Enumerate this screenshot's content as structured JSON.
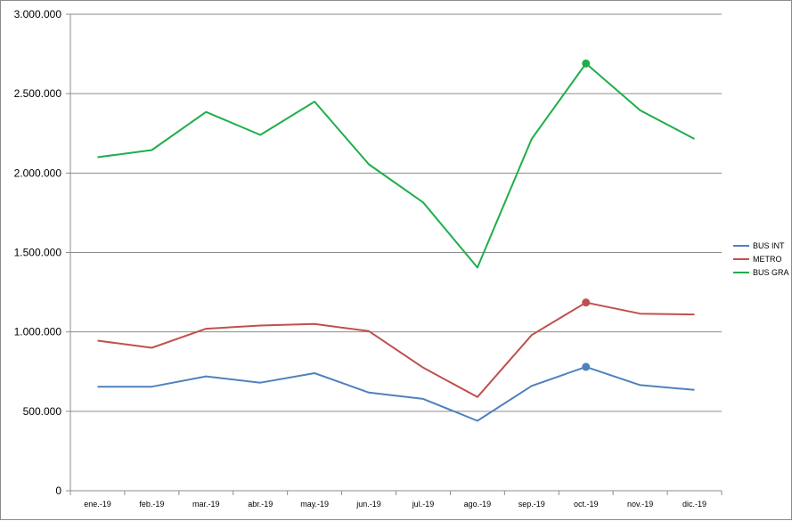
{
  "chart_data": {
    "type": "line",
    "categories": [
      "ene.-19",
      "feb.-19",
      "mar.-19",
      "abr.-19",
      "may.-19",
      "jun.-19",
      "jul.-19",
      "ago.-19",
      "sep.-19",
      "oct.-19",
      "nov.-19",
      "dic.-19"
    ],
    "y_tick_labels": [
      "0",
      "500.000",
      "1.000.000",
      "1.500.000",
      "2.000.000",
      "2.500.000",
      "3.000.000"
    ],
    "ylim": [
      0,
      3000000
    ],
    "grid": true,
    "legend_position": "right",
    "series": [
      {
        "name": "BUS INT",
        "color": "#4f81bd",
        "values": [
          655000,
          655000,
          720000,
          680000,
          740000,
          618000,
          578000,
          440000,
          660000,
          780000,
          665000,
          635000
        ],
        "highlight_index": 9
      },
      {
        "name": "METRO",
        "color": "#c0504d",
        "values": [
          945000,
          900000,
          1020000,
          1040000,
          1050000,
          1005000,
          775000,
          590000,
          980000,
          1185000,
          1115000,
          1110000
        ],
        "highlight_index": 9
      },
      {
        "name": "BUS GRA",
        "color": "#1fae4b",
        "values": [
          2100000,
          2145000,
          2385000,
          2240000,
          2450000,
          2055000,
          1815000,
          1405000,
          2215000,
          2690000,
          2395000,
          2215000
        ],
        "highlight_index": 9
      }
    ]
  }
}
